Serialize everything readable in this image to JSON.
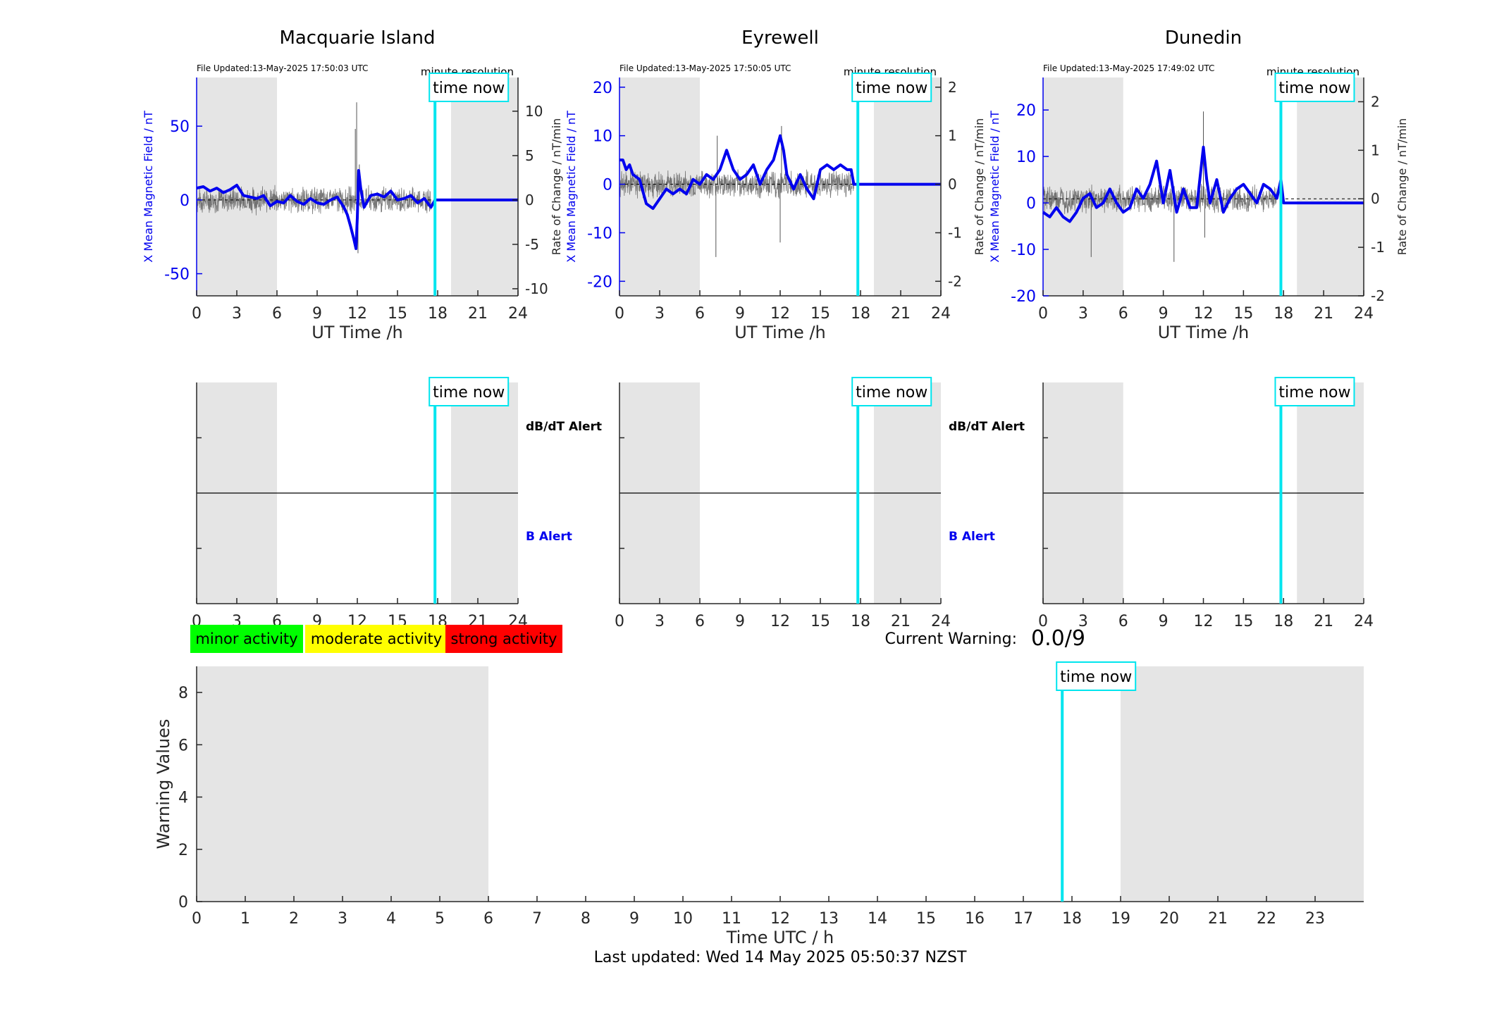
{
  "footer": {
    "last_updated": "Last updated: Wed 14 May 2025 05:50:37 NZST"
  },
  "current_warning": {
    "label": "Current Warning:",
    "value": "0.0/9"
  },
  "legend": [
    {
      "label": "minor activity",
      "color": "#00ff00"
    },
    {
      "label": "moderate activity",
      "color": "#ffff00"
    },
    {
      "label": "strong activity",
      "color": "#ff0000"
    }
  ],
  "colors": {
    "field_line": "#0000ee",
    "rate_line": "#555555",
    "time_now": "#00e5ee",
    "shade": "#e5e5e5",
    "axis": "#262626"
  },
  "chart_data": [
    {
      "type": "line",
      "title": "Macquarie Island",
      "file_updated": "File Updated:13-May-2025 17:50:03 UTC",
      "resolution_label": "minute resolution",
      "time_now_label": "time now",
      "xlabel": "UT Time /h",
      "ylabel_left": "X Mean Magnetic Field / nT",
      "ylabel_right": "Rate of Change / nT/min",
      "xlim": [
        0,
        24
      ],
      "ylim_left": [
        -65,
        83
      ],
      "ylim_right": [
        -10.8,
        13.8
      ],
      "xticks": [
        0,
        3,
        6,
        9,
        12,
        15,
        18,
        21,
        24
      ],
      "yticks_left": [
        -50,
        0,
        50
      ],
      "yticks_right": [
        -10,
        -5,
        0,
        5,
        10
      ],
      "shaded_x": [
        [
          0,
          6
        ],
        [
          19,
          24
        ]
      ],
      "time_now": 17.8,
      "field": {
        "x": [
          0,
          0.5,
          1,
          1.5,
          2,
          2.5,
          3,
          3.5,
          4,
          4.5,
          5,
          5.5,
          6,
          6.5,
          7,
          7.5,
          8,
          8.5,
          9,
          9.5,
          10,
          10.5,
          11,
          11.25,
          11.5,
          11.75,
          11.9,
          12,
          12.1,
          12.25,
          12.5,
          13,
          13.5,
          14,
          14.5,
          15,
          15.5,
          16,
          16.5,
          17,
          17.5,
          17.8,
          18,
          24
        ],
        "y": [
          8,
          9,
          6,
          8,
          5,
          7,
          10,
          3,
          2,
          1,
          3,
          -4,
          -1,
          -2,
          3,
          -1,
          -3,
          1,
          -2,
          -3,
          0,
          2,
          -5,
          -10,
          -18,
          -27,
          -33,
          -12,
          20,
          8,
          -5,
          3,
          4,
          2,
          6,
          0,
          1,
          3,
          -2,
          1,
          -5,
          0,
          0,
          0
        ]
      },
      "rate": {
        "x": [
          11.85,
          11.95,
          12.05,
          12.15
        ],
        "y": [
          8,
          11,
          -6,
          4
        ]
      }
    },
    {
      "type": "line",
      "title": "Eyrewell",
      "file_updated": "File Updated:13-May-2025 17:50:05 UTC",
      "resolution_label": "minute resolution",
      "time_now_label": "time now",
      "xlabel": "UT Time /h",
      "ylabel_left": "X Mean Magnetic Field / nT",
      "ylabel_right": "Rate of Change / nT/min",
      "xlim": [
        0,
        24
      ],
      "ylim_left": [
        -23,
        22
      ],
      "ylim_right": [
        -2.3,
        2.2
      ],
      "xticks": [
        0,
        3,
        6,
        9,
        12,
        15,
        18,
        21,
        24
      ],
      "yticks_left": [
        -20,
        -10,
        0,
        10,
        20
      ],
      "yticks_right": [
        -2,
        -1,
        0,
        1,
        2
      ],
      "shaded_x": [
        [
          0,
          6
        ],
        [
          19,
          24
        ]
      ],
      "time_now": 17.8,
      "field": {
        "x": [
          0,
          0.25,
          0.5,
          0.75,
          1,
          1.5,
          2,
          2.5,
          3,
          3.5,
          4,
          4.5,
          5,
          5.5,
          6,
          6.5,
          7,
          7.5,
          8,
          8.5,
          9,
          9.5,
          10,
          10.5,
          11,
          11.5,
          12,
          12.25,
          12.5,
          13,
          13.5,
          14,
          14.5,
          15,
          15.5,
          16,
          16.5,
          17,
          17.3,
          17.5,
          24
        ],
        "y": [
          5,
          5,
          3,
          4,
          2,
          1,
          -4,
          -5,
          -3,
          -1,
          -2,
          -1,
          -2,
          1,
          0,
          2,
          1,
          3,
          7,
          3,
          1,
          2,
          4,
          0,
          3,
          5,
          10,
          7,
          2,
          -1,
          2,
          -1,
          -3,
          3,
          4,
          3,
          4,
          3,
          3,
          0,
          0
        ]
      },
      "rate": {
        "x": [
          7.2,
          7.3,
          12.0,
          12.1
        ],
        "y": [
          -1.5,
          1.0,
          -1.2,
          1.2
        ]
      }
    },
    {
      "type": "line",
      "title": "Dunedin",
      "file_updated": "File Updated:13-May-2025 17:49:02 UTC",
      "resolution_label": "minute resolution",
      "time_now_label": "time now",
      "xlabel": "UT Time /h",
      "ylabel_left": "X Mean Magnetic Field / nT",
      "ylabel_right": "Rate of Change / nT/min",
      "xlim": [
        0,
        24
      ],
      "ylim_left": [
        -20,
        27
      ],
      "ylim_right": [
        -2,
        2.5
      ],
      "xticks": [
        0,
        3,
        6,
        9,
        12,
        15,
        18,
        21,
        24
      ],
      "yticks_left": [
        -20,
        -10,
        0,
        10,
        20
      ],
      "yticks_right": [
        -2,
        -1,
        0,
        1,
        2
      ],
      "shaded_x": [
        [
          0,
          6
        ],
        [
          19,
          24
        ]
      ],
      "time_now": 17.8,
      "field": {
        "x": [
          0,
          0.5,
          1,
          1.5,
          2,
          2.5,
          3,
          3.5,
          4,
          4.5,
          5,
          5.5,
          6,
          6.5,
          7,
          7.5,
          8,
          8.5,
          9,
          9.5,
          10,
          10.5,
          11,
          11.5,
          12,
          12.25,
          12.5,
          13,
          13.5,
          14,
          14.5,
          15,
          15.5,
          16,
          16.5,
          17,
          17.5,
          17.8,
          18,
          24
        ],
        "y": [
          -2,
          -3,
          -1,
          -3,
          -4,
          -2,
          1,
          2,
          -1,
          0,
          3,
          0,
          -2,
          -1,
          3,
          1,
          4,
          9,
          0,
          7,
          -2,
          3,
          -1,
          -1,
          12,
          5,
          0,
          5,
          -2,
          1,
          3,
          4,
          2,
          0,
          4,
          3,
          1,
          5,
          0,
          0
        ]
      },
      "rate": {
        "x": [
          3.6,
          9.8,
          12.0,
          12.1
        ],
        "y": [
          -1.2,
          -1.3,
          1.8,
          -0.8
        ]
      }
    },
    {
      "type": "line",
      "title": "",
      "time_now_label": "time now",
      "label_upper": "dB/dT Alert",
      "label_lower": "B Alert",
      "xlim": [
        0,
        24
      ],
      "ylim": [
        0,
        2
      ],
      "xticks": [
        0,
        3,
        6,
        9,
        12,
        15,
        18,
        21,
        24
      ],
      "shaded_x": [
        [
          0,
          6
        ],
        [
          19,
          24
        ]
      ],
      "time_now": 17.8,
      "midline": 1
    },
    {
      "type": "line",
      "title": "",
      "time_now_label": "time now",
      "label_upper": "dB/dT Alert",
      "label_lower": "B Alert",
      "xlim": [
        0,
        24
      ],
      "ylim": [
        0,
        2
      ],
      "xticks": [
        0,
        3,
        6,
        9,
        12,
        15,
        18,
        21,
        24
      ],
      "shaded_x": [
        [
          0,
          6
        ],
        [
          19,
          24
        ]
      ],
      "time_now": 17.8,
      "midline": 1
    },
    {
      "type": "line",
      "title": "",
      "time_now_label": "time now",
      "xlim": [
        0,
        24
      ],
      "ylim": [
        0,
        2
      ],
      "xticks": [
        0,
        3,
        6,
        9,
        12,
        15,
        18,
        21,
        24
      ],
      "shaded_x": [
        [
          0,
          6
        ],
        [
          19,
          24
        ]
      ],
      "time_now": 17.8,
      "midline": 1
    },
    {
      "type": "line",
      "title": "",
      "time_now_label": "time now",
      "xlabel": "Time UTC / h",
      "ylabel": "Warning Values",
      "xlim": [
        0,
        24
      ],
      "ylim": [
        0,
        9
      ],
      "xticks": [
        0,
        1,
        2,
        3,
        4,
        5,
        6,
        7,
        8,
        9,
        10,
        11,
        12,
        13,
        14,
        15,
        16,
        17,
        18,
        19,
        20,
        21,
        22,
        23
      ],
      "yticks": [
        0,
        2,
        4,
        6,
        8
      ],
      "shaded_x": [
        [
          0,
          6
        ],
        [
          19,
          24
        ]
      ],
      "time_now": 17.8
    }
  ]
}
